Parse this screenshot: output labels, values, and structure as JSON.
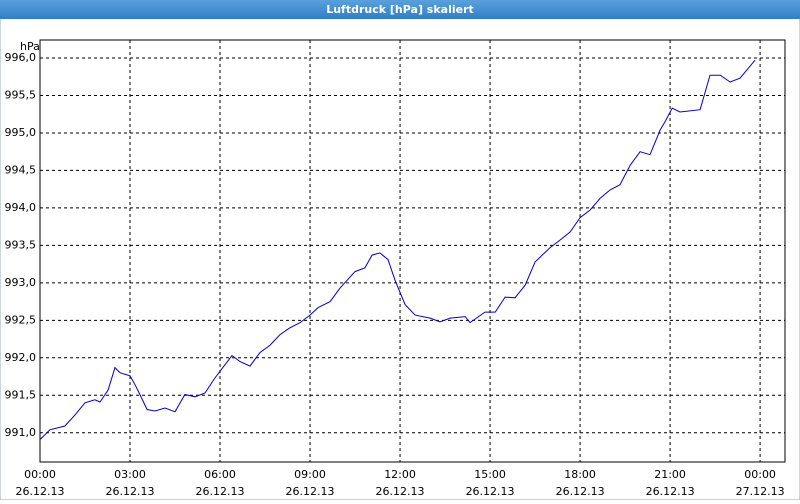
{
  "chart_data": {
    "type": "line",
    "title": "Luftdruck [hPa] skaliert",
    "y_label": "hPa",
    "x": [
      0,
      0.33,
      0.83,
      1.17,
      1.5,
      1.83,
      2,
      2.27,
      2.5,
      2.67,
      3,
      3.17,
      3.33,
      3.57,
      3.83,
      4.17,
      4.5,
      4.83,
      5.17,
      5.5,
      5.83,
      6.17,
      6.4,
      6.67,
      7,
      7.33,
      7.67,
      8,
      8.33,
      8.67,
      9,
      9.27,
      9.67,
      10,
      10.5,
      10.83,
      11.07,
      11.33,
      11.6,
      11.83,
      12.17,
      12.5,
      13,
      13.33,
      13.67,
      14.17,
      14.33,
      14.83,
      15.17,
      15.5,
      15.83,
      16.17,
      16.5,
      17,
      17.33,
      17.67,
      18,
      18.33,
      18.67,
      19,
      19.33,
      19.67,
      20,
      20.33,
      20.67,
      20.83,
      21.07,
      21.33,
      22,
      22.33,
      22.67,
      23,
      23.33,
      23.83
    ],
    "series": [
      {
        "name": "Luftdruck",
        "color": "#0000cc",
        "values": [
          990.91,
          991.04,
          991.09,
          991.24,
          991.4,
          991.44,
          991.41,
          991.57,
          991.87,
          991.8,
          991.76,
          991.64,
          991.51,
          991.31,
          991.29,
          991.33,
          991.28,
          991.51,
          991.48,
          991.53,
          991.73,
          991.91,
          992.03,
          991.95,
          991.89,
          992.07,
          992.17,
          992.31,
          992.4,
          992.47,
          992.57,
          992.67,
          992.75,
          992.93,
          993.15,
          993.2,
          993.37,
          993.4,
          993.31,
          993.04,
          992.71,
          992.57,
          992.53,
          992.48,
          992.53,
          992.55,
          992.47,
          992.61,
          992.61,
          992.81,
          992.8,
          992.97,
          993.28,
          993.47,
          993.57,
          993.68,
          993.87,
          993.97,
          994.13,
          994.24,
          994.31,
          994.57,
          994.75,
          994.71,
          995.04,
          995.15,
          995.33,
          995.28,
          995.31,
          995.77,
          995.77,
          995.68,
          995.73,
          995.97
        ]
      }
    ],
    "xlim": [
      0,
      24.83
    ],
    "xticks": [
      {
        "value": 0,
        "label": "00:00",
        "date": "26.12.13"
      },
      {
        "value": 3,
        "label": "03:00",
        "date": "26.12.13"
      },
      {
        "value": 6,
        "label": "06:00",
        "date": "26.12.13"
      },
      {
        "value": 9,
        "label": "09:00",
        "date": "26.12.13"
      },
      {
        "value": 12,
        "label": "12:00",
        "date": "26.12.13"
      },
      {
        "value": 15,
        "label": "15:00",
        "date": "26.12.13"
      },
      {
        "value": 18,
        "label": "18:00",
        "date": "26.12.13"
      },
      {
        "value": 21,
        "label": "21:00",
        "date": "26.12.13"
      },
      {
        "value": 24,
        "label": "00:00",
        "date": "27.12.13"
      }
    ],
    "ylim": [
      990.61,
      996.24
    ],
    "yticks": [
      {
        "value": 991,
        "label": "991,0"
      },
      {
        "value": 991.5,
        "label": "991,5"
      },
      {
        "value": 992,
        "label": "992,0"
      },
      {
        "value": 992.5,
        "label": "992,5"
      },
      {
        "value": 993,
        "label": "993,0"
      },
      {
        "value": 993.5,
        "label": "993,5"
      },
      {
        "value": 994,
        "label": "994,0"
      },
      {
        "value": 994.5,
        "label": "994,5"
      },
      {
        "value": 995,
        "label": "995,0"
      },
      {
        "value": 995.5,
        "label": "995,5"
      },
      {
        "value": 996,
        "label": "996,0"
      }
    ],
    "grid": true
  }
}
